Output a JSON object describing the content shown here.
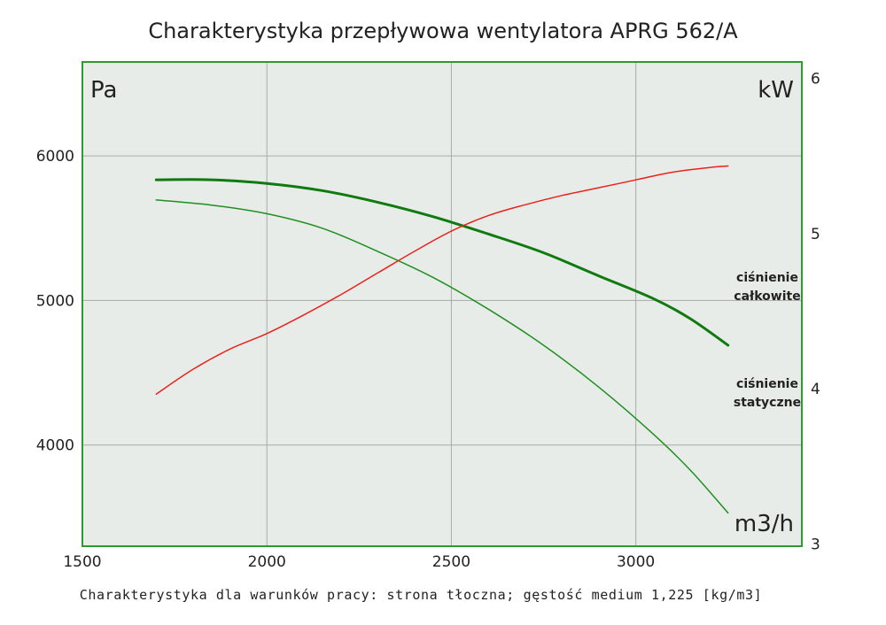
{
  "title": "Charakterystyka przepływowa wentylatora APRG 562/A",
  "caption": "Charakterystyka dla warunków pracy: strona tłoczna; gęstość medium 1,225 [kg/m3]",
  "colors": {
    "plot_background": "#e8ece8",
    "frame": "#2e9a2e",
    "grid": "#a8aaa8",
    "total_pressure": "#0f7a0f",
    "static_pressure": "#1f8f1f",
    "power": "#e8221c"
  },
  "chart_data": {
    "type": "line",
    "title": "Charakterystyka przepływowa wentylatora APRG 562/A",
    "xlabel": "m3/h",
    "ylabel": "Pa",
    "y2label": "kW",
    "xlim": [
      1500,
      3450
    ],
    "ylim": [
      3300,
      6650
    ],
    "y2lim": [
      2.98,
      6.1
    ],
    "x_ticks": [
      1500,
      2000,
      2500,
      3000
    ],
    "y_ticks": [
      4000,
      5000,
      6000
    ],
    "y2_ticks": [
      3,
      4,
      5,
      6
    ],
    "grid": true,
    "series": [
      {
        "name": "ciśnienie całkowite",
        "axis": "left",
        "x": [
          1700,
          1850,
          2000,
          2150,
          2300,
          2450,
          2600,
          2750,
          2900,
          3050,
          3150,
          3250
        ],
        "y": [
          5835,
          5835,
          5810,
          5760,
          5680,
          5580,
          5460,
          5330,
          5170,
          5010,
          4870,
          4690
        ]
      },
      {
        "name": "ciśnienie statyczne",
        "axis": "left",
        "x": [
          1700,
          1850,
          2000,
          2150,
          2300,
          2450,
          2600,
          2750,
          2900,
          3050,
          3150,
          3250
        ],
        "y": [
          5695,
          5660,
          5600,
          5500,
          5340,
          5160,
          4940,
          4690,
          4400,
          4070,
          3820,
          3530
        ]
      },
      {
        "axis": "right",
        "x": [
          1700,
          1800,
          1900,
          2000,
          2100,
          2200,
          2300,
          2400,
          2500,
          2600,
          2700,
          2800,
          2900,
          3000,
          3100,
          3200,
          3250
        ],
        "y": [
          3.96,
          4.12,
          4.25,
          4.35,
          4.47,
          4.6,
          4.74,
          4.88,
          5.01,
          5.11,
          5.18,
          5.24,
          5.29,
          5.34,
          5.39,
          5.42,
          5.43
        ]
      }
    ],
    "annotations": [
      {
        "lines": [
          "ciśnienie",
          "całkowite"
        ],
        "series": 0
      },
      {
        "lines": [
          "ciśnienie",
          "statyczne"
        ],
        "series": 1
      }
    ]
  }
}
